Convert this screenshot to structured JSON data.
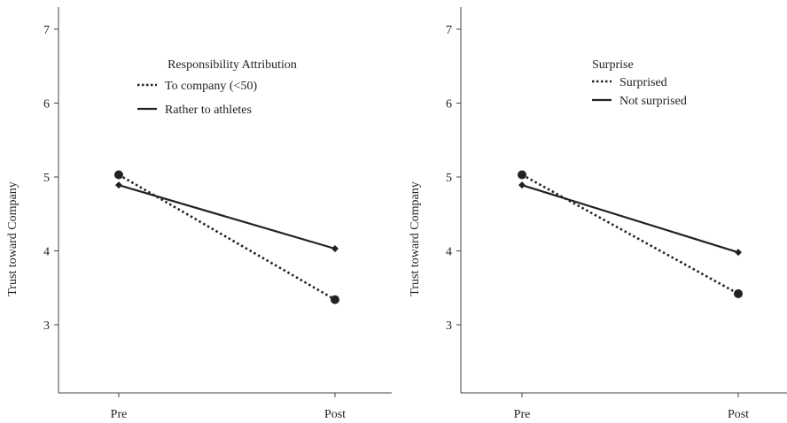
{
  "chart_data": [
    {
      "type": "line",
      "categories": [
        "Pre",
        "Post"
      ],
      "ylabel": "Trust toward Company",
      "xlabel": "",
      "ylim": [
        2.1,
        7.3
      ],
      "yticks": [
        3,
        4,
        5,
        6,
        7
      ],
      "grid": false,
      "legend": {
        "title": "Responsibility Attribution",
        "placement": "top-center"
      },
      "series": [
        {
          "name": "To company (<50)",
          "style": "dotted",
          "marker": "circle",
          "values": [
            5.03,
            3.34
          ]
        },
        {
          "name": "Rather to athletes",
          "style": "solid",
          "marker": "diamond",
          "values": [
            4.89,
            4.03
          ]
        }
      ]
    },
    {
      "type": "line",
      "categories": [
        "Pre",
        "Post"
      ],
      "ylabel": "Trust toward Company",
      "xlabel": "",
      "ylim": [
        2.1,
        7.3
      ],
      "yticks": [
        3,
        4,
        5,
        6,
        7
      ],
      "grid": false,
      "legend": {
        "title": "Surprise",
        "placement": "top-center"
      },
      "series": [
        {
          "name": "Surprised",
          "style": "dotted",
          "marker": "circle",
          "values": [
            5.03,
            3.42
          ]
        },
        {
          "name": "Not surprised",
          "style": "solid",
          "marker": "diamond",
          "values": [
            4.89,
            3.98
          ]
        }
      ]
    }
  ],
  "colors": {
    "line": "#222222",
    "axis": "#444444",
    "text": "#222222"
  }
}
